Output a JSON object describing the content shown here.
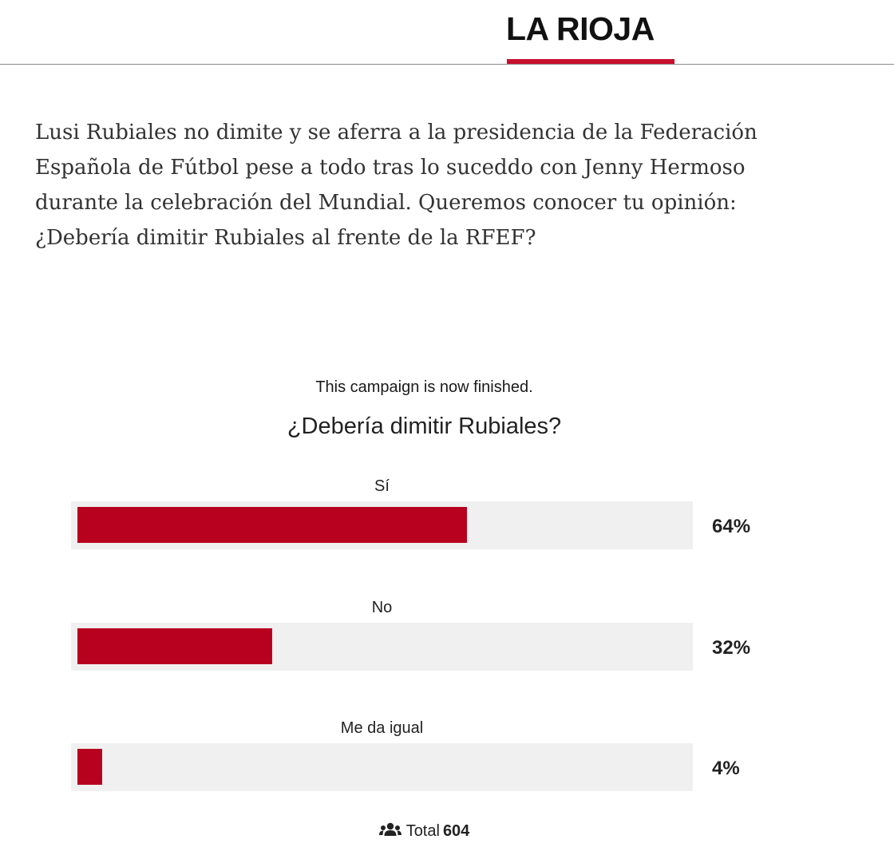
{
  "header": {
    "logo_text": "LA RIOJA",
    "accent_color": "#c8102e"
  },
  "article": {
    "intro": "Lusi Rubiales no dimite y se aferra a la presidencia de la Federación Española de Fútbol pese a todo tras lo suceddo con Jenny Hermoso durante la celebración del Mundial. Queremos conocer tu opinión: ¿Debería dimitir Rubiales al frente de la RFEF?"
  },
  "poll": {
    "status": "This campaign is now finished.",
    "question": "¿Debería dimitir Rubiales?",
    "bar_color": "#b8001f",
    "options": [
      {
        "label": "Sí",
        "percent_label": "64%",
        "percent": 64
      },
      {
        "label": "No",
        "percent_label": "32%",
        "percent": 32
      },
      {
        "label": "Me da igual",
        "percent_label": "4%",
        "percent": 4
      }
    ],
    "total_label": "Total",
    "total_value": "604",
    "total_icon": "users-icon"
  }
}
